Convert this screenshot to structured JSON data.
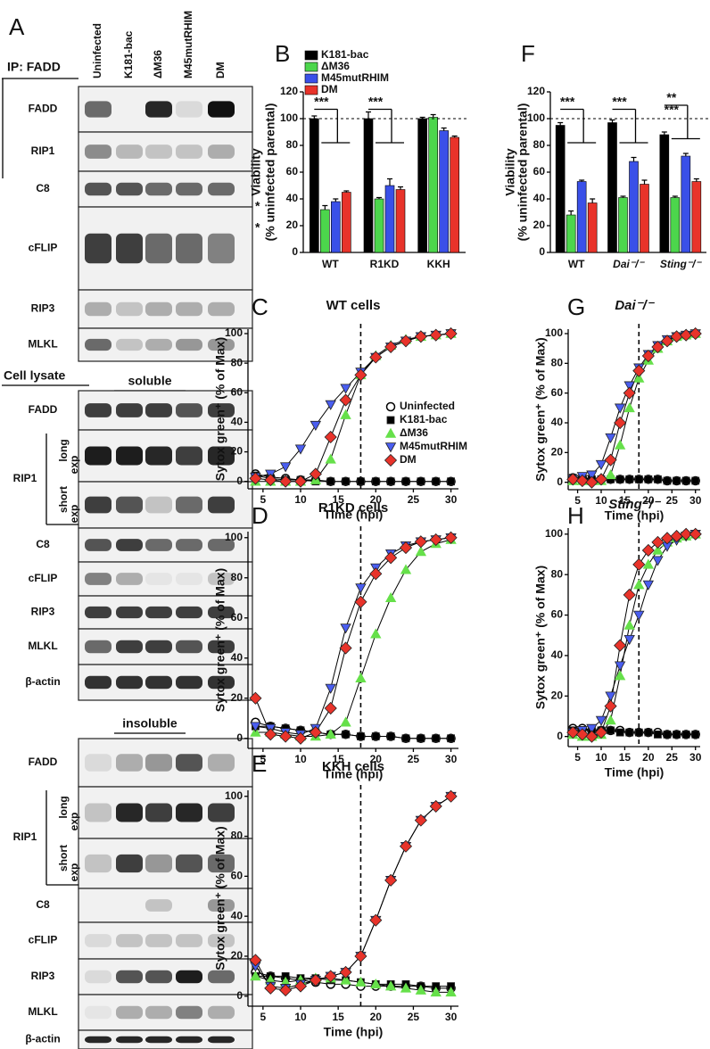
{
  "blot": {
    "panel": "A",
    "lanes": [
      "Uninfected",
      "K181-bac",
      "ΔM36",
      "M45mutRHIM",
      "DM"
    ],
    "ip_label": "IP: FADD",
    "ip_rows": [
      "FADD",
      "RIP1",
      "C8",
      "cFLIP",
      "RIP3",
      "MLKL"
    ],
    "asterisks": [
      "*",
      "*"
    ],
    "lysate_label": "Cell lysate",
    "fractions": [
      {
        "title": "soluble",
        "rows": [
          "FADD",
          "RIP1",
          "C8",
          "cFLIP",
          "RIP3",
          "MLKL",
          "β-actin"
        ],
        "sublabels": [
          "long",
          "exp",
          "short",
          "exp"
        ]
      },
      {
        "title": "insoluble",
        "rows": [
          "FADD",
          "RIP1",
          "C8",
          "cFLIP",
          "RIP3",
          "MLKL",
          "β-actin"
        ],
        "sublabels": [
          "long",
          "exp",
          "short",
          "exp"
        ]
      }
    ]
  },
  "chart_data": [
    {
      "type": "bar",
      "panel": "B",
      "categories": [
        "WT",
        "R1KD",
        "KKH"
      ],
      "ylabel": [
        "Viability",
        "(% uninfected parental)"
      ],
      "ylim": [
        0,
        120
      ],
      "yticks": [
        0,
        20,
        40,
        60,
        80,
        100,
        120
      ],
      "refline": 100,
      "legend": "top-left",
      "annotations": [
        "***",
        "***"
      ],
      "series": [
        {
          "name": "K181-bac",
          "color": "#000000",
          "values": [
            100,
            100,
            100
          ],
          "errors": [
            2,
            5,
            1
          ]
        },
        {
          "name": "ΔM36",
          "color": "#4cd64c",
          "values": [
            32,
            40,
            101
          ],
          "errors": [
            3,
            1,
            2
          ]
        },
        {
          "name": "M45mutRHIM",
          "color": "#3a50e8",
          "values": [
            38,
            50,
            91
          ],
          "errors": [
            2,
            5,
            2
          ]
        },
        {
          "name": "DM",
          "color": "#e8332a",
          "values": [
            45,
            47,
            86
          ],
          "errors": [
            1,
            2,
            1
          ]
        }
      ]
    },
    {
      "type": "bar",
      "panel": "F",
      "categories": [
        "WT",
        "Dai⁻/⁻",
        "Sting⁻/⁻"
      ],
      "ylabel": [
        "Viability",
        "(% uninfected parental)"
      ],
      "ylim": [
        0,
        120
      ],
      "yticks": [
        0,
        20,
        40,
        60,
        80,
        100,
        120
      ],
      "refline": 100,
      "annotations": [
        "***",
        "***",
        "**",
        "***"
      ],
      "series": [
        {
          "color": "#000000",
          "values": [
            95,
            97,
            88
          ],
          "errors": [
            2,
            2,
            2
          ]
        },
        {
          "color": "#4cd64c",
          "values": [
            28,
            41,
            41
          ],
          "errors": [
            3,
            1,
            1
          ]
        },
        {
          "color": "#3a50e8",
          "values": [
            53,
            68,
            72
          ],
          "errors": [
            1,
            3,
            2
          ]
        },
        {
          "color": "#e8332a",
          "values": [
            37,
            51,
            53
          ],
          "errors": [
            3,
            3,
            2
          ]
        }
      ]
    },
    {
      "type": "line",
      "panel": "C",
      "title": "WT cells",
      "xlabel": "Time (hpi)",
      "ylabel": "Sytox green⁺ (% of Max)",
      "x": [
        4,
        6,
        8,
        10,
        12,
        14,
        16,
        18,
        20,
        22,
        24,
        26,
        28,
        30
      ],
      "xlim": [
        3,
        31
      ],
      "xticks": [
        5,
        10,
        15,
        20,
        25,
        30
      ],
      "ylim": [
        -5,
        103
      ],
      "yticks": [
        0,
        20,
        40,
        60,
        80,
        100
      ],
      "vline": 18,
      "legend": "bottom-right",
      "series": [
        {
          "name": "Uninfected",
          "color": "#000000",
          "marker": "circle-open",
          "values": [
            5,
            3,
            2,
            1,
            1,
            0,
            0,
            0,
            0,
            0,
            0,
            0,
            0,
            0
          ]
        },
        {
          "name": "K181-bac",
          "color": "#000000",
          "marker": "square",
          "values": [
            4,
            2,
            1,
            1,
            0,
            0,
            0,
            0,
            0,
            0,
            0,
            0,
            0,
            0
          ]
        },
        {
          "name": "ΔM36",
          "color": "#66e04a",
          "marker": "triangle-up",
          "values": [
            0,
            0,
            0,
            0,
            1,
            15,
            45,
            72,
            85,
            92,
            96,
            98,
            99,
            100
          ]
        },
        {
          "name": "M45mutRHIM",
          "color": "#4a5ef0",
          "marker": "triangle-down",
          "values": [
            3,
            5,
            10,
            22,
            38,
            52,
            63,
            74,
            84,
            91,
            95,
            98,
            99,
            100
          ]
        },
        {
          "name": "DM",
          "color": "#e8332a",
          "marker": "diamond",
          "values": [
            2,
            1,
            0,
            0,
            5,
            30,
            55,
            72,
            84,
            91,
            95,
            98,
            99,
            100
          ]
        }
      ]
    },
    {
      "type": "line",
      "panel": "D",
      "title": "R1KD cells",
      "xlabel": "Time (hpi)",
      "ylabel": "Sytox green⁺ (% of Max)",
      "x": [
        4,
        6,
        8,
        10,
        12,
        14,
        16,
        18,
        20,
        22,
        24,
        26,
        28,
        30
      ],
      "xlim": [
        3,
        31
      ],
      "xticks": [
        5,
        10,
        15,
        20,
        25,
        30
      ],
      "ylim": [
        -5,
        103
      ],
      "yticks": [
        0,
        20,
        40,
        60,
        80,
        100
      ],
      "vline": 18,
      "series": [
        {
          "color": "#000000",
          "marker": "circle-open",
          "values": [
            8,
            6,
            5,
            4,
            3,
            2,
            2,
            1,
            1,
            1,
            0,
            0,
            0,
            0
          ]
        },
        {
          "color": "#000000",
          "marker": "square",
          "values": [
            6,
            6,
            5,
            4,
            3,
            2,
            2,
            1,
            1,
            1,
            0,
            0,
            0,
            0
          ]
        },
        {
          "color": "#66e04a",
          "marker": "triangle-up",
          "values": [
            3,
            3,
            2,
            1,
            1,
            2,
            8,
            30,
            52,
            70,
            84,
            93,
            97,
            99
          ]
        },
        {
          "color": "#4a5ef0",
          "marker": "triangle-down",
          "values": [
            6,
            5,
            3,
            2,
            5,
            25,
            55,
            75,
            85,
            92,
            96,
            98,
            99,
            100
          ]
        },
        {
          "color": "#e8332a",
          "marker": "diamond",
          "values": [
            20,
            2,
            1,
            0,
            3,
            15,
            45,
            68,
            82,
            90,
            95,
            98,
            99,
            100
          ]
        }
      ]
    },
    {
      "type": "line",
      "panel": "E",
      "title": "KKH cells",
      "xlabel": "Time (hpi)",
      "ylabel": "Sytox green⁺ (% of Max)",
      "x": [
        4,
        6,
        8,
        10,
        12,
        14,
        16,
        18,
        20,
        22,
        24,
        26,
        28,
        30
      ],
      "xlim": [
        3,
        31
      ],
      "xticks": [
        5,
        10,
        15,
        20,
        25,
        30
      ],
      "ylim": [
        -5,
        103
      ],
      "yticks": [
        0,
        20,
        40,
        60,
        80,
        100
      ],
      "vline": 18,
      "series": [
        {
          "color": "#000000",
          "marker": "circle-open",
          "values": [
            12,
            10,
            9,
            8,
            7,
            6,
            6,
            5,
            5,
            5,
            5,
            5,
            4,
            4
          ]
        },
        {
          "color": "#000000",
          "marker": "square",
          "values": [
            10,
            10,
            10,
            9,
            9,
            8,
            8,
            7,
            6,
            6,
            6,
            5,
            5,
            5
          ]
        },
        {
          "color": "#66e04a",
          "marker": "triangle-up",
          "values": [
            10,
            8,
            7,
            8,
            9,
            9,
            8,
            7,
            6,
            5,
            4,
            3,
            2,
            2
          ]
        },
        {
          "color": "#4a5ef0",
          "marker": "triangle-down",
          "values": [
            15,
            5,
            4,
            6,
            8,
            10,
            12,
            20,
            38,
            58,
            75,
            88,
            95,
            100
          ]
        },
        {
          "color": "#e8332a",
          "marker": "diamond",
          "values": [
            18,
            4,
            3,
            5,
            8,
            10,
            12,
            20,
            38,
            58,
            75,
            88,
            95,
            100
          ]
        }
      ]
    },
    {
      "type": "line",
      "panel": "G",
      "title": "Dai⁻/⁻",
      "xlabel": "Time (hpi)",
      "ylabel": "Sytox green⁺ (% of Max)",
      "x": [
        4,
        6,
        8,
        10,
        12,
        14,
        16,
        18,
        20,
        22,
        24,
        26,
        28,
        30
      ],
      "xlim": [
        3,
        31
      ],
      "xticks": [
        5,
        10,
        15,
        20,
        25,
        30
      ],
      "ylim": [
        -5,
        103
      ],
      "yticks": [
        0,
        20,
        40,
        60,
        80,
        100
      ],
      "vline": 18,
      "series": [
        {
          "color": "#000000",
          "marker": "circle-open",
          "values": [
            3,
            3,
            2,
            2,
            2,
            2,
            2,
            2,
            2,
            2,
            1,
            1,
            1,
            1
          ]
        },
        {
          "color": "#000000",
          "marker": "square",
          "values": [
            3,
            3,
            2,
            2,
            2,
            2,
            2,
            2,
            2,
            2,
            1,
            1,
            1,
            1
          ]
        },
        {
          "color": "#66e04a",
          "marker": "triangle-up",
          "values": [
            1,
            1,
            1,
            1,
            5,
            25,
            50,
            70,
            82,
            90,
            95,
            98,
            99,
            100
          ]
        },
        {
          "color": "#4a5ef0",
          "marker": "triangle-down",
          "values": [
            2,
            4,
            5,
            12,
            30,
            50,
            65,
            77,
            86,
            92,
            96,
            98,
            99,
            100
          ]
        },
        {
          "color": "#e8332a",
          "marker": "diamond",
          "values": [
            2,
            1,
            0,
            2,
            15,
            40,
            60,
            75,
            85,
            91,
            95,
            98,
            99,
            100
          ]
        }
      ]
    },
    {
      "type": "line",
      "panel": "H",
      "title": "Sting⁻/⁻",
      "xlabel": "Time (hpi)",
      "ylabel": "Sytox green⁺ (% of Max)",
      "x": [
        4,
        6,
        8,
        10,
        12,
        14,
        16,
        18,
        20,
        22,
        24,
        26,
        28,
        30
      ],
      "xlim": [
        3,
        31
      ],
      "xticks": [
        5,
        10,
        15,
        20,
        25,
        30
      ],
      "ylim": [
        -5,
        103
      ],
      "yticks": [
        0,
        20,
        40,
        60,
        80,
        100
      ],
      "vline": 18,
      "series": [
        {
          "color": "#000000",
          "marker": "circle-open",
          "values": [
            4,
            4,
            3,
            3,
            3,
            3,
            2,
            2,
            2,
            2,
            1,
            1,
            1,
            1
          ]
        },
        {
          "color": "#000000",
          "marker": "square",
          "values": [
            3,
            3,
            3,
            3,
            3,
            2,
            2,
            2,
            2,
            1,
            1,
            1,
            1,
            1
          ]
        },
        {
          "color": "#66e04a",
          "marker": "triangle-up",
          "values": [
            1,
            0,
            0,
            1,
            8,
            30,
            55,
            75,
            85,
            92,
            96,
            98,
            99,
            100
          ]
        },
        {
          "color": "#4a5ef0",
          "marker": "triangle-down",
          "values": [
            2,
            3,
            4,
            8,
            20,
            35,
            48,
            60,
            75,
            87,
            94,
            97,
            99,
            100
          ]
        },
        {
          "color": "#e8332a",
          "marker": "diamond",
          "values": [
            2,
            1,
            0,
            2,
            15,
            45,
            70,
            85,
            92,
            96,
            98,
            99,
            100,
            100
          ]
        }
      ]
    }
  ]
}
